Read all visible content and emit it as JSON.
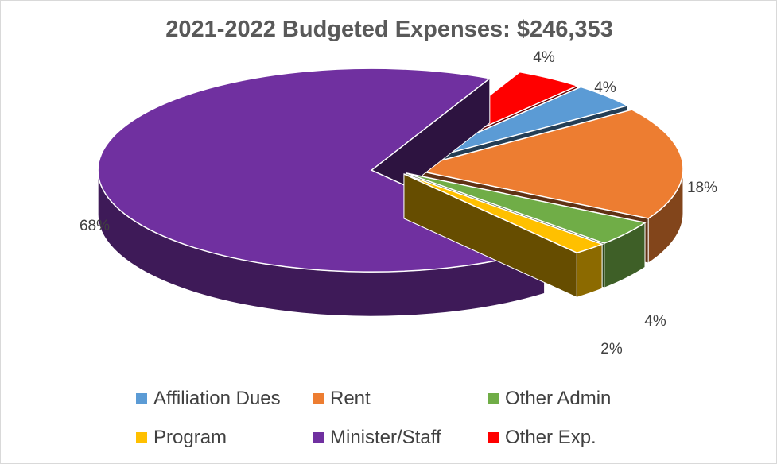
{
  "chart_data": {
    "type": "pie",
    "title": "2021-2022 Budgeted Expenses: $246,353",
    "slices": [
      {
        "name": "Affiliation Dues",
        "value": 4,
        "label": "4%",
        "color": "#5b9bd5"
      },
      {
        "name": "Rent",
        "value": 18,
        "label": "18%",
        "color": "#ed7d31"
      },
      {
        "name": "Other Admin",
        "value": 4,
        "label": "4%",
        "color": "#70ad47"
      },
      {
        "name": "Program",
        "value": 2,
        "label": "2%",
        "color": "#ffc000"
      },
      {
        "name": "Minister/Staff",
        "value": 68,
        "label": "68%",
        "color": "#7030a0"
      },
      {
        "name": "Other Exp.",
        "value": 4,
        "label": "4%",
        "color": "#ff0000"
      }
    ],
    "legend_position": "bottom",
    "style": "3d exploded"
  }
}
